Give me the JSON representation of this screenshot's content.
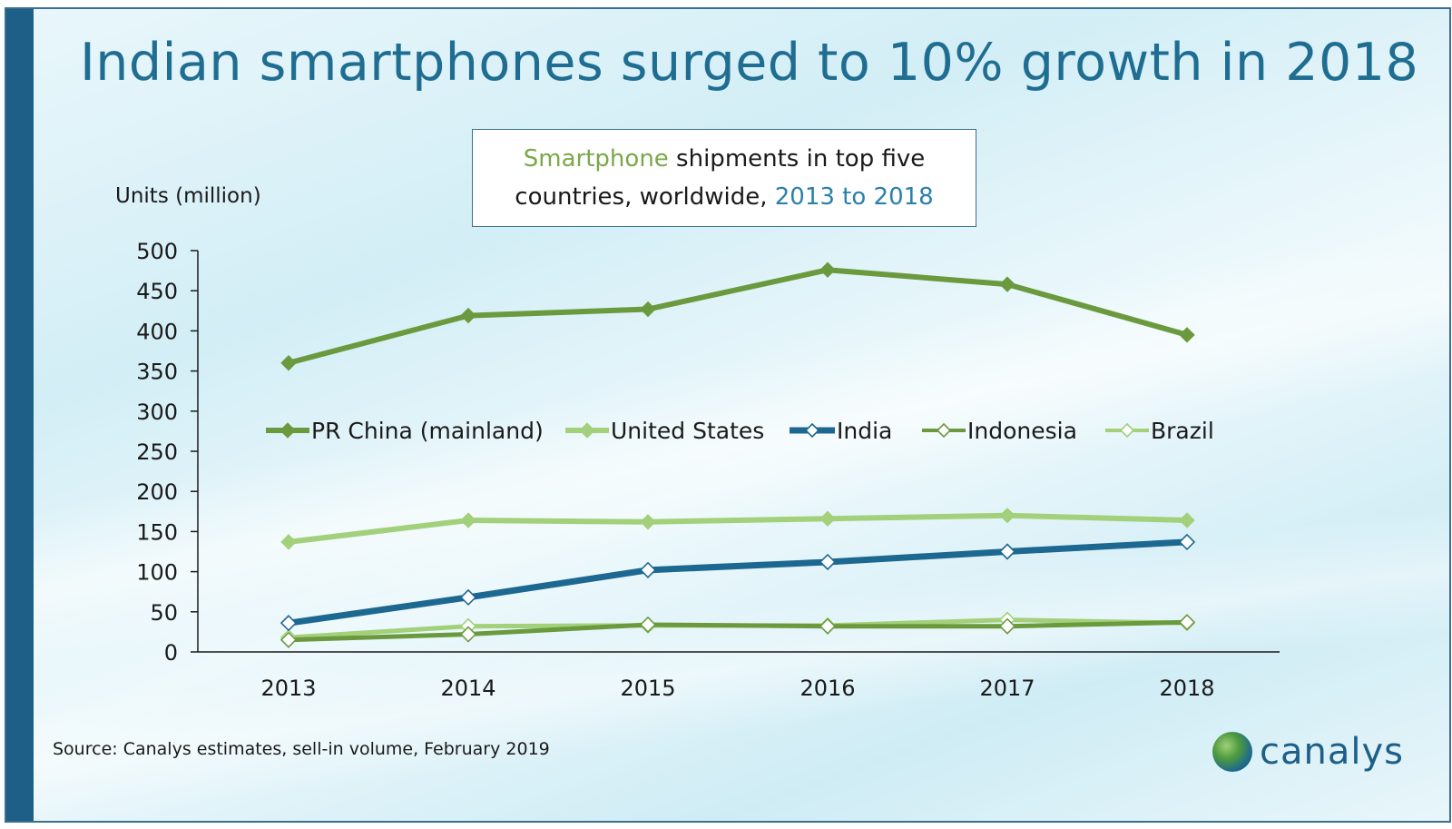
{
  "slide": {
    "title": "Indian smartphones surged to 10% growth in 2018",
    "subtitle_part1": "Smartphone",
    "subtitle_part2": " shipments in top five",
    "subtitle_part3": "countries, worldwide, ",
    "subtitle_part4": "2013 to 2018",
    "units_label": "Units (million)",
    "source": "Source: Canalys estimates, sell-in volume, February 2019",
    "logo_text": "canalys"
  },
  "colors": {
    "china": "#6a9a3d",
    "us": "#a3d07a",
    "india": "#1d6890",
    "indonesia": "#6a9a3d",
    "brazil": "#a3d07a"
  },
  "chart_data": {
    "type": "line",
    "title": "Smartphone shipments in top five countries, worldwide, 2013 to 2018",
    "ylabel": "Units (million)",
    "xlabel": "",
    "ylim": [
      0,
      500
    ],
    "yticks": [
      0,
      50,
      100,
      150,
      200,
      250,
      300,
      350,
      400,
      450,
      500
    ],
    "categories": [
      "2013",
      "2014",
      "2015",
      "2016",
      "2017",
      "2018"
    ],
    "legend_position": "center",
    "series": [
      {
        "name": "PR China (mainland)",
        "key": "china",
        "marker": "filled-diamond",
        "values": [
          360,
          419,
          427,
          476,
          458,
          395
        ]
      },
      {
        "name": "United States",
        "key": "us",
        "marker": "filled-diamond",
        "values": [
          137,
          164,
          162,
          166,
          170,
          164
        ]
      },
      {
        "name": "India",
        "key": "india",
        "marker": "open-diamond",
        "values": [
          36,
          68,
          102,
          112,
          125,
          137
        ]
      },
      {
        "name": "Indonesia",
        "key": "indonesia",
        "marker": "open-diamond",
        "values": [
          15,
          22,
          34,
          32,
          32,
          37
        ]
      },
      {
        "name": "Brazil",
        "key": "brazil",
        "marker": "open-diamond",
        "values": [
          18,
          32,
          33,
          33,
          40,
          36
        ]
      }
    ]
  }
}
